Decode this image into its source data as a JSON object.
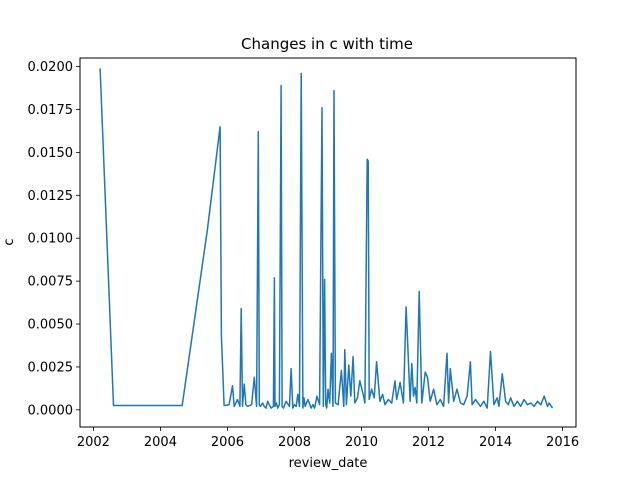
{
  "chart_data": {
    "type": "line",
    "title": "Changes in c with time",
    "xlabel": "review_date",
    "ylabel": "c",
    "xlim": [
      2001.6,
      2016.4
    ],
    "ylim": [
      -0.001,
      0.0205
    ],
    "grid": false,
    "x_ticks": [
      2002,
      2004,
      2006,
      2008,
      2010,
      2012,
      2014,
      2016
    ],
    "x_tick_labels": [
      "2002",
      "2004",
      "2006",
      "2008",
      "2010",
      "2012",
      "2014",
      "2016"
    ],
    "y_ticks": [
      0.0,
      0.0025,
      0.005,
      0.0075,
      0.01,
      0.0125,
      0.015,
      0.0175,
      0.02
    ],
    "y_tick_labels": [
      "0.0000",
      "0.0025",
      "0.0050",
      "0.0075",
      "0.0100",
      "0.0125",
      "0.0150",
      "0.0175",
      "0.0200"
    ],
    "series": [
      {
        "color": "#1f77b4",
        "x": [
          2002.2,
          2002.6,
          2004.65,
          2005.4,
          2005.78,
          2005.82,
          2005.9,
          2006.05,
          2006.15,
          2006.2,
          2006.3,
          2006.37,
          2006.41,
          2006.45,
          2006.5,
          2006.55,
          2006.6,
          2006.72,
          2006.8,
          2006.87,
          2006.92,
          2006.95,
          2006.98,
          2007.05,
          2007.1,
          2007.15,
          2007.2,
          2007.3,
          2007.37,
          2007.4,
          2007.42,
          2007.46,
          2007.5,
          2007.55,
          2007.6,
          2007.63,
          2007.67,
          2007.75,
          2007.85,
          2007.9,
          2007.95,
          2008.0,
          2008.05,
          2008.1,
          2008.15,
          2008.2,
          2008.25,
          2008.28,
          2008.32,
          2008.4,
          2008.5,
          2008.55,
          2008.6,
          2008.67,
          2008.75,
          2008.82,
          2008.86,
          2008.9,
          2008.93,
          2008.96,
          2009.0,
          2009.05,
          2009.1,
          2009.15,
          2009.18,
          2009.22,
          2009.3,
          2009.4,
          2009.47,
          2009.5,
          2009.55,
          2009.62,
          2009.68,
          2009.75,
          2009.8,
          2009.88,
          2009.95,
          2010.05,
          2010.1,
          2010.17,
          2010.2,
          2010.23,
          2010.3,
          2010.38,
          2010.45,
          2010.55,
          2010.63,
          2010.7,
          2010.8,
          2010.9,
          2011.0,
          2011.05,
          2011.15,
          2011.25,
          2011.33,
          2011.38,
          2011.45,
          2011.5,
          2011.55,
          2011.6,
          2011.65,
          2011.72,
          2011.8,
          2011.9,
          2011.97,
          2012.05,
          2012.15,
          2012.25,
          2012.35,
          2012.45,
          2012.55,
          2012.6,
          2012.65,
          2012.75,
          2012.85,
          2012.95,
          2013.05,
          2013.15,
          2013.25,
          2013.3,
          2013.4,
          2013.55,
          2013.65,
          2013.75,
          2013.85,
          2013.95,
          2014.05,
          2014.1,
          2014.2,
          2014.3,
          2014.38,
          2014.45,
          2014.55,
          2014.65,
          2014.75,
          2014.85,
          2014.95,
          2015.05,
          2015.15,
          2015.25,
          2015.35,
          2015.45,
          2015.55,
          2015.6,
          2015.7
        ],
        "y": [
          0.0199,
          0.00025,
          0.00025,
          0.0105,
          0.0165,
          0.0043,
          0.00025,
          0.0003,
          0.0014,
          0.0002,
          0.0006,
          0.0002,
          0.0059,
          0.0002,
          0.0015,
          0.0003,
          0.0002,
          0.0003,
          0.0019,
          0.0002,
          0.0162,
          0.0003,
          0.0002,
          0.0004,
          0.0002,
          0.0001,
          0.0005,
          0.0001,
          0.0002,
          0.0077,
          0.0002,
          0.0004,
          0.0001,
          0.0003,
          0.0189,
          0.0002,
          0.0001,
          0.0005,
          0.0002,
          0.0024,
          0.0001,
          0.0003,
          0.0002,
          0.0009,
          0.0002,
          0.0196,
          0.0001,
          0.0007,
          0.0002,
          0.0006,
          0.0001,
          0.0003,
          0.0001,
          0.0008,
          0.0003,
          0.0176,
          0.0002,
          0.0076,
          0.0003,
          0.0001,
          0.0012,
          0.0004,
          0.0033,
          0.0002,
          0.0186,
          0.0004,
          0.0003,
          0.0023,
          0.0002,
          0.0035,
          0.0003,
          0.0026,
          0.0008,
          0.0031,
          0.0004,
          0.0007,
          0.0017,
          0.0009,
          0.0004,
          0.0146,
          0.0145,
          0.0006,
          0.0012,
          0.0007,
          0.0028,
          0.0005,
          0.0009,
          0.0003,
          0.0006,
          0.0004,
          0.0017,
          0.0006,
          0.0016,
          0.0004,
          0.006,
          0.0037,
          0.0005,
          0.0027,
          0.0008,
          0.0013,
          0.0004,
          0.0069,
          0.0004,
          0.0022,
          0.0019,
          0.0005,
          0.0012,
          0.0003,
          0.0006,
          0.0002,
          0.0033,
          0.0004,
          0.0024,
          0.0005,
          0.0012,
          0.0004,
          0.0003,
          0.0008,
          0.0028,
          0.0003,
          0.0006,
          0.0002,
          0.0005,
          0.0001,
          0.0034,
          0.0003,
          0.0007,
          0.0002,
          0.0021,
          0.0005,
          0.0003,
          0.0007,
          0.0002,
          0.0005,
          0.0002,
          0.0006,
          0.0003,
          0.0004,
          0.0002,
          0.0005,
          0.0003,
          0.0008,
          0.0002,
          0.0004,
          0.0001
        ]
      }
    ]
  }
}
